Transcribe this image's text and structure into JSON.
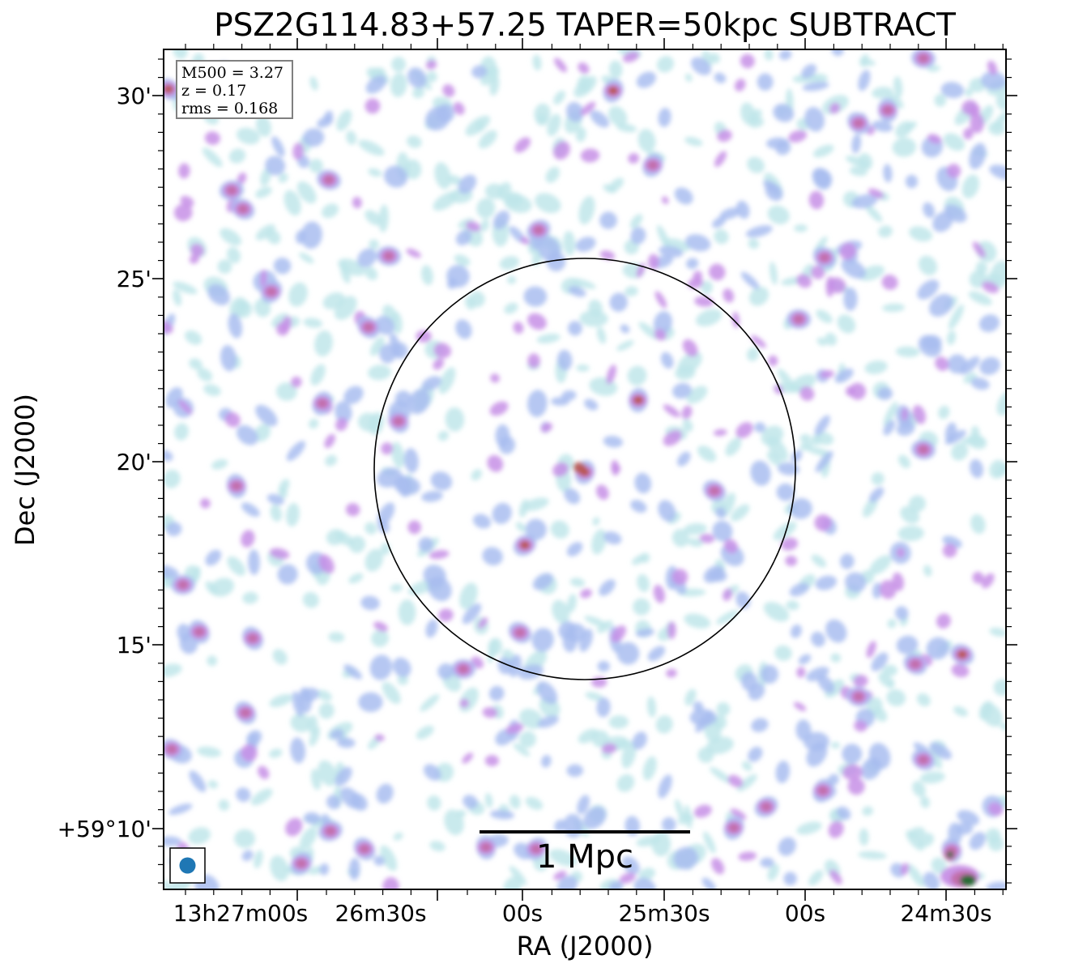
{
  "figure": {
    "title": "PSZ2G114.83+57.25 TAPER=50kpc SUBTRACT",
    "xlabel": "RA (J2000)",
    "ylabel": "Dec (J2000)"
  },
  "info_box": {
    "lines": [
      "M500 = 3.27",
      "z = 0.17",
      "rms = 0.168"
    ]
  },
  "scalebar": {
    "label": "1 Mpc"
  },
  "axes": {
    "x_ticks": [
      "13h27m00s",
      "26m30s",
      "00s",
      "25m30s",
      "00s",
      "24m30s"
    ],
    "y_ticks": [
      "30'",
      "25'",
      "20'",
      "15'",
      "+59°10'"
    ]
  },
  "colors": {
    "faint": "#bfe6ea",
    "low": "#a9bdf0",
    "mid": "#c78fe6",
    "high": "#c26da8",
    "peak": "#b8574f",
    "core": "#1f6b2e",
    "beam": "#1f77b4"
  }
}
